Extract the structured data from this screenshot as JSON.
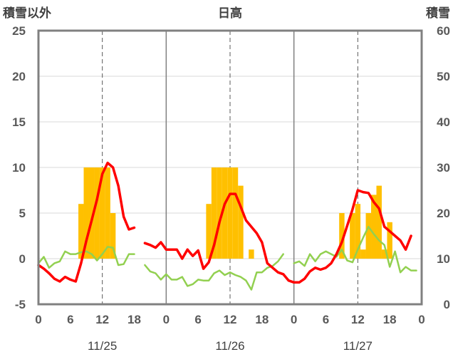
{
  "chart_data": {
    "type": "bar+line",
    "title": "日高",
    "left_axis": {
      "label": "積雪以外",
      "range": [
        -5,
        25
      ],
      "ticks": [
        "-5",
        "0",
        "5",
        "10",
        "15",
        "20",
        "25"
      ]
    },
    "right_axis": {
      "label": "積雪",
      "range": [
        0,
        60
      ],
      "ticks": [
        "0",
        "10",
        "20",
        "30",
        "40",
        "50",
        "60"
      ]
    },
    "x_axis": {
      "range_hours": [
        0,
        72
      ],
      "hour_ticks": [
        {
          "h": 0,
          "label": "0"
        },
        {
          "h": 6,
          "label": "6"
        },
        {
          "h": 12,
          "label": "12"
        },
        {
          "h": 18,
          "label": "18"
        },
        {
          "h": 24,
          "label": "0"
        },
        {
          "h": 30,
          "label": "6"
        },
        {
          "h": 36,
          "label": "12"
        },
        {
          "h": 42,
          "label": "18"
        },
        {
          "h": 48,
          "label": "0"
        },
        {
          "h": 54,
          "label": "6"
        },
        {
          "h": 60,
          "label": "12"
        },
        {
          "h": 66,
          "label": "18"
        },
        {
          "h": 72,
          "label": "0"
        }
      ],
      "day_boundaries": [
        24,
        48
      ],
      "noon_lines": [
        12,
        36,
        60
      ],
      "dates": [
        {
          "h": 12,
          "label": "11/25"
        },
        {
          "h": 36,
          "label": "11/26"
        },
        {
          "h": 60,
          "label": "11/27"
        }
      ]
    },
    "colors": {
      "bars": "#FFC000",
      "red_line": "#FF0000",
      "green_line": "#92D050",
      "purple_line": "#7030A0",
      "frame": "#808080"
    },
    "bars_series": {
      "axis": "left",
      "points": [
        {
          "h": 8,
          "v": 6
        },
        {
          "h": 9,
          "v": 10
        },
        {
          "h": 10,
          "v": 10
        },
        {
          "h": 11,
          "v": 10
        },
        {
          "h": 12,
          "v": 10
        },
        {
          "h": 13,
          "v": 10
        },
        {
          "h": 14,
          "v": 5
        },
        {
          "h": 32,
          "v": 6
        },
        {
          "h": 33,
          "v": 10
        },
        {
          "h": 34,
          "v": 10
        },
        {
          "h": 35,
          "v": 10
        },
        {
          "h": 36,
          "v": 10
        },
        {
          "h": 37,
          "v": 10
        },
        {
          "h": 38,
          "v": 8
        },
        {
          "h": 40,
          "v": 1
        },
        {
          "h": 57,
          "v": 5
        },
        {
          "h": 59,
          "v": 5
        },
        {
          "h": 60,
          "v": 6
        },
        {
          "h": 61,
          "v": 1
        },
        {
          "h": 62,
          "v": 5
        },
        {
          "h": 63,
          "v": 7
        },
        {
          "h": 64,
          "v": 8
        },
        {
          "h": 65,
          "v": 1
        },
        {
          "h": 66,
          "v": 4
        }
      ]
    },
    "red_series": {
      "axis": "left",
      "points": [
        [
          0,
          -0.7
        ],
        [
          1,
          -1.1
        ],
        [
          2,
          -1.6
        ],
        [
          3,
          -2.2
        ],
        [
          4,
          -2.5
        ],
        [
          5,
          -2.0
        ],
        [
          6,
          -2.3
        ],
        [
          7,
          -2.5
        ],
        [
          8,
          -0.5
        ],
        [
          9,
          2.0
        ],
        [
          10,
          4.2
        ],
        [
          11,
          6.5
        ],
        [
          12,
          9.3
        ],
        [
          13,
          10.5
        ],
        [
          14,
          10.0
        ],
        [
          15,
          8.0
        ],
        [
          16,
          4.6
        ],
        [
          17,
          3.2
        ],
        [
          18,
          3.4
        ],
        null,
        [
          20,
          1.7
        ],
        [
          21,
          1.5
        ],
        [
          22,
          1.2
        ],
        [
          23,
          1.8
        ],
        [
          24,
          1.0
        ],
        [
          25,
          1.0
        ],
        [
          26,
          1.0
        ],
        [
          27,
          0.0
        ],
        [
          28,
          1.0
        ],
        [
          29,
          0.3
        ],
        [
          30,
          0.9
        ],
        [
          31,
          -1.1
        ],
        [
          32,
          -0.4
        ],
        [
          33,
          1.5
        ],
        [
          34,
          4.0
        ],
        [
          35,
          6.0
        ],
        [
          36,
          7.1
        ],
        [
          37,
          7.1
        ],
        [
          38,
          5.7
        ],
        [
          39,
          4.2
        ],
        [
          40,
          3.5
        ],
        [
          41,
          2.8
        ],
        [
          42,
          1.8
        ],
        [
          43,
          -0.5
        ],
        [
          44,
          -1.0
        ],
        [
          45,
          -1.5
        ],
        [
          46,
          -1.7
        ],
        [
          47,
          -2.4
        ],
        [
          48,
          -2.6
        ],
        [
          49,
          -2.6
        ],
        [
          50,
          -2.2
        ],
        [
          51,
          -1.4
        ],
        [
          52,
          -1.0
        ],
        [
          53,
          -1.2
        ],
        [
          54,
          -1.0
        ],
        [
          55,
          -0.5
        ],
        [
          56,
          0.5
        ],
        [
          57,
          1.8
        ],
        [
          58,
          3.6
        ],
        [
          59,
          5.4
        ],
        [
          60,
          7.5
        ],
        [
          61,
          7.3
        ],
        [
          62,
          7.2
        ],
        [
          63,
          6.2
        ],
        [
          64,
          5.5
        ],
        [
          65,
          3.5
        ],
        [
          66,
          3.0
        ],
        [
          67,
          2.5
        ],
        [
          68,
          2.0
        ],
        [
          69,
          1.0
        ],
        [
          70,
          2.5
        ]
      ]
    },
    "green_series": {
      "axis": "left",
      "points": [
        [
          0,
          -0.5
        ],
        [
          1,
          0.2
        ],
        [
          2,
          -1.0
        ],
        [
          3,
          -0.5
        ],
        [
          4,
          -0.3
        ],
        [
          5,
          0.8
        ],
        [
          6,
          0.5
        ],
        [
          7,
          0.5
        ],
        [
          8,
          0.7
        ],
        [
          9,
          0.8
        ],
        [
          10,
          0.5
        ],
        [
          11,
          -0.2
        ],
        [
          12,
          0.5
        ],
        [
          13,
          1.3
        ],
        [
          14,
          1.2
        ],
        [
          15,
          -0.7
        ],
        [
          16,
          -0.6
        ],
        [
          17,
          0.5
        ],
        [
          18,
          0.5
        ],
        null,
        [
          20,
          -0.7
        ],
        [
          21,
          -1.4
        ],
        [
          22,
          -1.6
        ],
        [
          23,
          -2.3
        ],
        [
          24,
          -1.7
        ],
        [
          25,
          -2.3
        ],
        [
          26,
          -2.3
        ],
        [
          27,
          -2.0
        ],
        [
          28,
          -3.0
        ],
        [
          29,
          -2.8
        ],
        [
          30,
          -2.3
        ],
        [
          31,
          -2.4
        ],
        [
          32,
          -2.4
        ],
        [
          33,
          -1.6
        ],
        [
          34,
          -1.3
        ],
        [
          35,
          -1.8
        ],
        [
          36,
          -1.5
        ],
        [
          37,
          -1.8
        ],
        [
          38,
          -2.0
        ],
        [
          39,
          -2.4
        ],
        [
          40,
          -3.4
        ],
        [
          41,
          -1.5
        ],
        [
          42,
          -1.5
        ],
        [
          43,
          -1.0
        ],
        [
          44,
          -0.8
        ],
        [
          45,
          -0.3
        ],
        [
          46,
          0.5
        ],
        null,
        [
          48,
          -0.5
        ],
        [
          49,
          -0.3
        ],
        [
          50,
          -0.8
        ],
        [
          51,
          0.5
        ],
        [
          52,
          -0.3
        ],
        [
          53,
          0.5
        ],
        [
          54,
          0.8
        ],
        [
          55,
          0.5
        ],
        [
          56,
          0.2
        ],
        [
          57,
          1.0
        ],
        [
          58,
          -0.2
        ],
        [
          59,
          -0.4
        ],
        [
          60,
          1.0
        ],
        [
          61,
          2.3
        ],
        [
          62,
          3.5
        ],
        [
          63,
          2.7
        ],
        [
          64,
          2.0
        ],
        [
          65,
          1.5
        ],
        [
          66,
          -0.9
        ],
        [
          67,
          0.8
        ],
        [
          68,
          -1.5
        ],
        [
          69,
          -0.9
        ],
        [
          70,
          -1.3
        ],
        [
          71,
          -1.3
        ]
      ]
    },
    "purple_series": {
      "axis": "left",
      "points": [
        [
          0,
          -5
        ],
        [
          72,
          -5
        ]
      ]
    }
  }
}
